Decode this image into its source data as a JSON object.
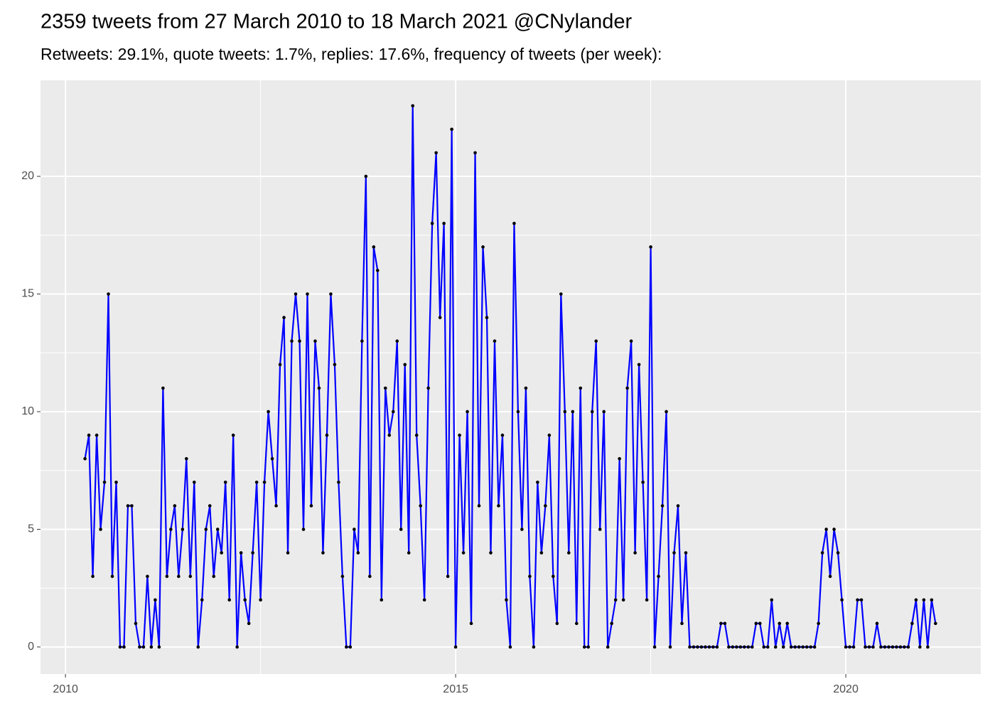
{
  "chart_data": {
    "type": "line",
    "title": "2359 tweets from 27 March 2010 to 18 March 2021 @CNylander",
    "subtitle": "Retweets: 29.1%, quote tweets: 1.7%, replies: 17.6%, frequency of tweets (per week):",
    "x": [
      2010.25,
      2010.3,
      2010.35,
      2010.4,
      2010.45,
      2010.5,
      2010.55,
      2010.6,
      2010.65,
      2010.7,
      2010.75,
      2010.8,
      2010.85,
      2010.9,
      2010.95,
      2011,
      2011.05,
      2011.1,
      2011.15,
      2011.2,
      2011.25,
      2011.3,
      2011.35,
      2011.4,
      2011.45,
      2011.5,
      2011.55,
      2011.6,
      2011.65,
      2011.7,
      2011.75,
      2011.8,
      2011.85,
      2011.9,
      2011.95,
      2012,
      2012.05,
      2012.1,
      2012.15,
      2012.2,
      2012.25,
      2012.3,
      2012.35,
      2012.4,
      2012.45,
      2012.5,
      2012.55,
      2012.6,
      2012.65,
      2012.7,
      2012.75,
      2012.8,
      2012.85,
      2012.9,
      2012.95,
      2013,
      2013.05,
      2013.1,
      2013.15,
      2013.2,
      2013.25,
      2013.3,
      2013.35,
      2013.4,
      2013.45,
      2013.5,
      2013.55,
      2013.6,
      2013.65,
      2013.7,
      2013.75,
      2013.8,
      2013.85,
      2013.9,
      2013.95,
      2014,
      2014.05,
      2014.1,
      2014.15,
      2014.2,
      2014.25,
      2014.3,
      2014.35,
      2014.4,
      2014.45,
      2014.5,
      2014.55,
      2014.6,
      2014.65,
      2014.7,
      2014.75,
      2014.8,
      2014.85,
      2014.9,
      2014.95,
      2015,
      2015.05,
      2015.1,
      2015.15,
      2015.2,
      2015.25,
      2015.3,
      2015.35,
      2015.4,
      2015.45,
      2015.5,
      2015.55,
      2015.6,
      2015.65,
      2015.7,
      2015.75,
      2015.8,
      2015.85,
      2015.9,
      2015.95,
      2016,
      2016.05,
      2016.1,
      2016.15,
      2016.2,
      2016.25,
      2016.3,
      2016.35,
      2016.4,
      2016.45,
      2016.5,
      2016.55,
      2016.6,
      2016.65,
      2016.7,
      2016.75,
      2016.8,
      2016.85,
      2016.9,
      2016.95,
      2017,
      2017.05,
      2017.1,
      2017.15,
      2017.2,
      2017.25,
      2017.3,
      2017.35,
      2017.4,
      2017.45,
      2017.5,
      2017.55,
      2017.6,
      2017.65,
      2017.7,
      2017.75,
      2017.8,
      2017.85,
      2017.9,
      2017.95,
      2018,
      2018.05,
      2018.1,
      2018.15,
      2018.2,
      2018.25,
      2018.3,
      2018.35,
      2018.4,
      2018.45,
      2018.5,
      2018.55,
      2018.6,
      2018.65,
      2018.7,
      2018.75,
      2018.8,
      2018.85,
      2018.9,
      2018.95,
      2019,
      2019.05,
      2019.1,
      2019.15,
      2019.2,
      2019.25,
      2019.3,
      2019.35,
      2019.4,
      2019.45,
      2019.5,
      2019.55,
      2019.6,
      2019.65,
      2019.7,
      2019.75,
      2019.8,
      2019.85,
      2019.9,
      2019.95,
      2020,
      2020.05,
      2020.1,
      2020.15,
      2020.2,
      2020.25,
      2020.3,
      2020.35,
      2020.4,
      2020.45,
      2020.5,
      2020.55,
      2020.6,
      2020.65,
      2020.7,
      2020.75,
      2020.8,
      2020.85,
      2020.9,
      2020.95,
      2021,
      2021.05,
      2021.1,
      2021.15
    ],
    "series": [
      {
        "color": "#0000ff",
        "values": [
          8,
          9,
          3,
          9,
          5,
          7,
          15,
          3,
          7,
          0,
          0,
          6,
          6,
          1,
          0,
          0,
          3,
          0,
          2,
          0,
          11,
          3,
          5,
          6,
          3,
          5,
          8,
          3,
          7,
          0,
          2,
          5,
          6,
          3,
          5,
          4,
          7,
          2,
          9,
          0,
          4,
          2,
          1,
          4,
          7,
          2,
          7,
          10,
          8,
          6,
          12,
          14,
          4,
          13,
          15,
          13,
          5,
          15,
          6,
          13,
          11,
          4,
          9,
          15,
          12,
          7,
          3,
          0,
          0,
          5,
          4,
          13,
          20,
          3,
          17,
          16,
          2,
          11,
          9,
          10,
          13,
          5,
          12,
          4,
          23,
          9,
          6,
          2,
          11,
          18,
          21,
          14,
          18,
          3,
          22,
          0,
          9,
          4,
          10,
          1,
          21,
          6,
          17,
          14,
          4,
          13,
          6,
          9,
          2,
          0,
          18,
          10,
          5,
          11,
          3,
          0,
          7,
          4,
          6,
          9,
          3,
          1,
          15,
          10,
          4,
          10,
          1,
          11,
          0,
          0,
          10,
          13,
          5,
          10,
          0,
          1,
          2,
          8,
          2,
          11,
          13,
          4,
          12,
          7,
          2,
          17,
          0,
          3,
          6,
          10,
          0,
          4,
          6,
          1,
          4,
          0,
          0,
          0,
          0,
          0,
          0,
          0,
          0,
          1,
          1,
          0,
          0,
          0,
          0,
          0,
          0,
          0,
          1,
          1,
          0,
          0,
          2,
          0,
          1,
          0,
          1,
          0,
          0,
          0,
          0,
          0,
          0,
          0,
          1,
          4,
          5,
          3,
          5,
          4,
          2,
          0,
          0,
          0,
          2,
          2,
          0,
          0,
          0,
          1,
          0,
          0,
          0,
          0,
          0,
          0,
          0,
          0,
          1,
          2,
          0,
          2,
          0,
          2,
          1
        ]
      }
    ],
    "point_color": "#000000",
    "xlim": [
      2009.68,
      2021.73
    ],
    "xticks": [
      2010,
      2015,
      2020
    ],
    "ylim": [
      -1.15,
      24.08
    ],
    "yticks": [
      0,
      5,
      10,
      15,
      20
    ],
    "grid": true
  }
}
